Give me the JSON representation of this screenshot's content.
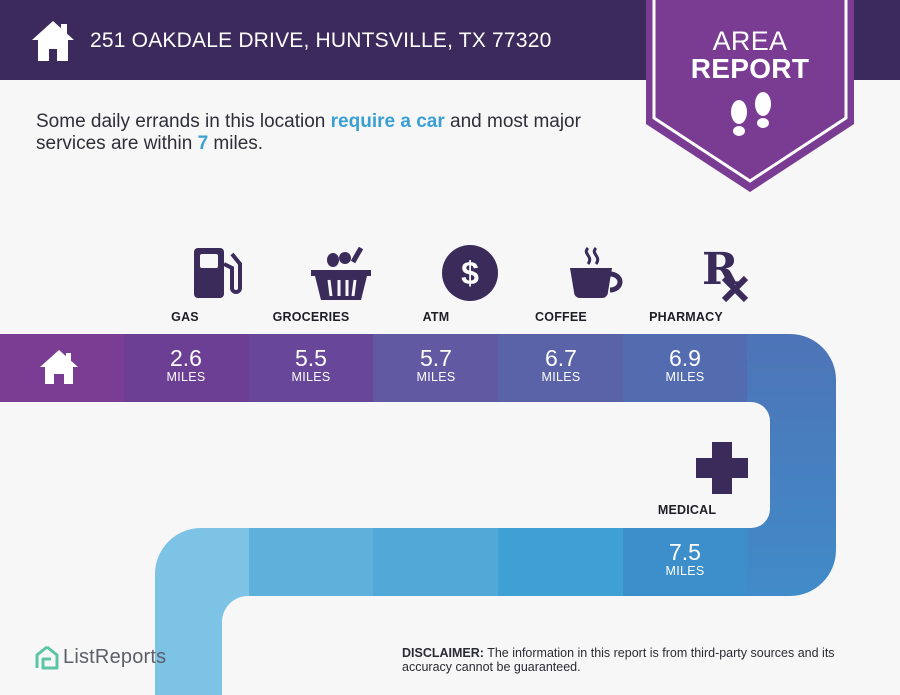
{
  "header": {
    "address": "251 OAKDALE DRIVE, HUNTSVILLE, TX 77320",
    "home_icon": "home-icon"
  },
  "badge": {
    "line1": "AREA",
    "line2": "REPORT",
    "icon": "footprints-icon"
  },
  "intro": {
    "part1": "Some daily errands in this location ",
    "highlight1": "require a car",
    "part2": " and most major services are within ",
    "highlight2": "7",
    "part3": " miles."
  },
  "colors": {
    "header": "#3d2a5c",
    "badge": "#7a3b93",
    "accent": "#3aa0d4",
    "icon": "#3a2b5a"
  },
  "amenities": [
    {
      "label": "GAS",
      "distance": "2.6",
      "unit": "MILES",
      "icon": "gas-pump-icon"
    },
    {
      "label": "GROCERIES",
      "distance": "5.5",
      "unit": "MILES",
      "icon": "grocery-basket-icon"
    },
    {
      "label": "ATM",
      "distance": "5.7",
      "unit": "MILES",
      "icon": "dollar-icon"
    },
    {
      "label": "COFFEE",
      "distance": "6.7",
      "unit": "MILES",
      "icon": "coffee-cup-icon"
    },
    {
      "label": "PHARMACY",
      "distance": "6.9",
      "unit": "MILES",
      "icon": "rx-icon"
    },
    {
      "label": "MEDICAL",
      "distance": "7.5",
      "unit": "MILES",
      "icon": "medical-cross-icon"
    }
  ],
  "footer": {
    "brand": "ListReports",
    "disclaimer_label": "DISCLAIMER:",
    "disclaimer_text": " The information in this report is from third-party sources and its accuracy cannot be guaranteed."
  }
}
